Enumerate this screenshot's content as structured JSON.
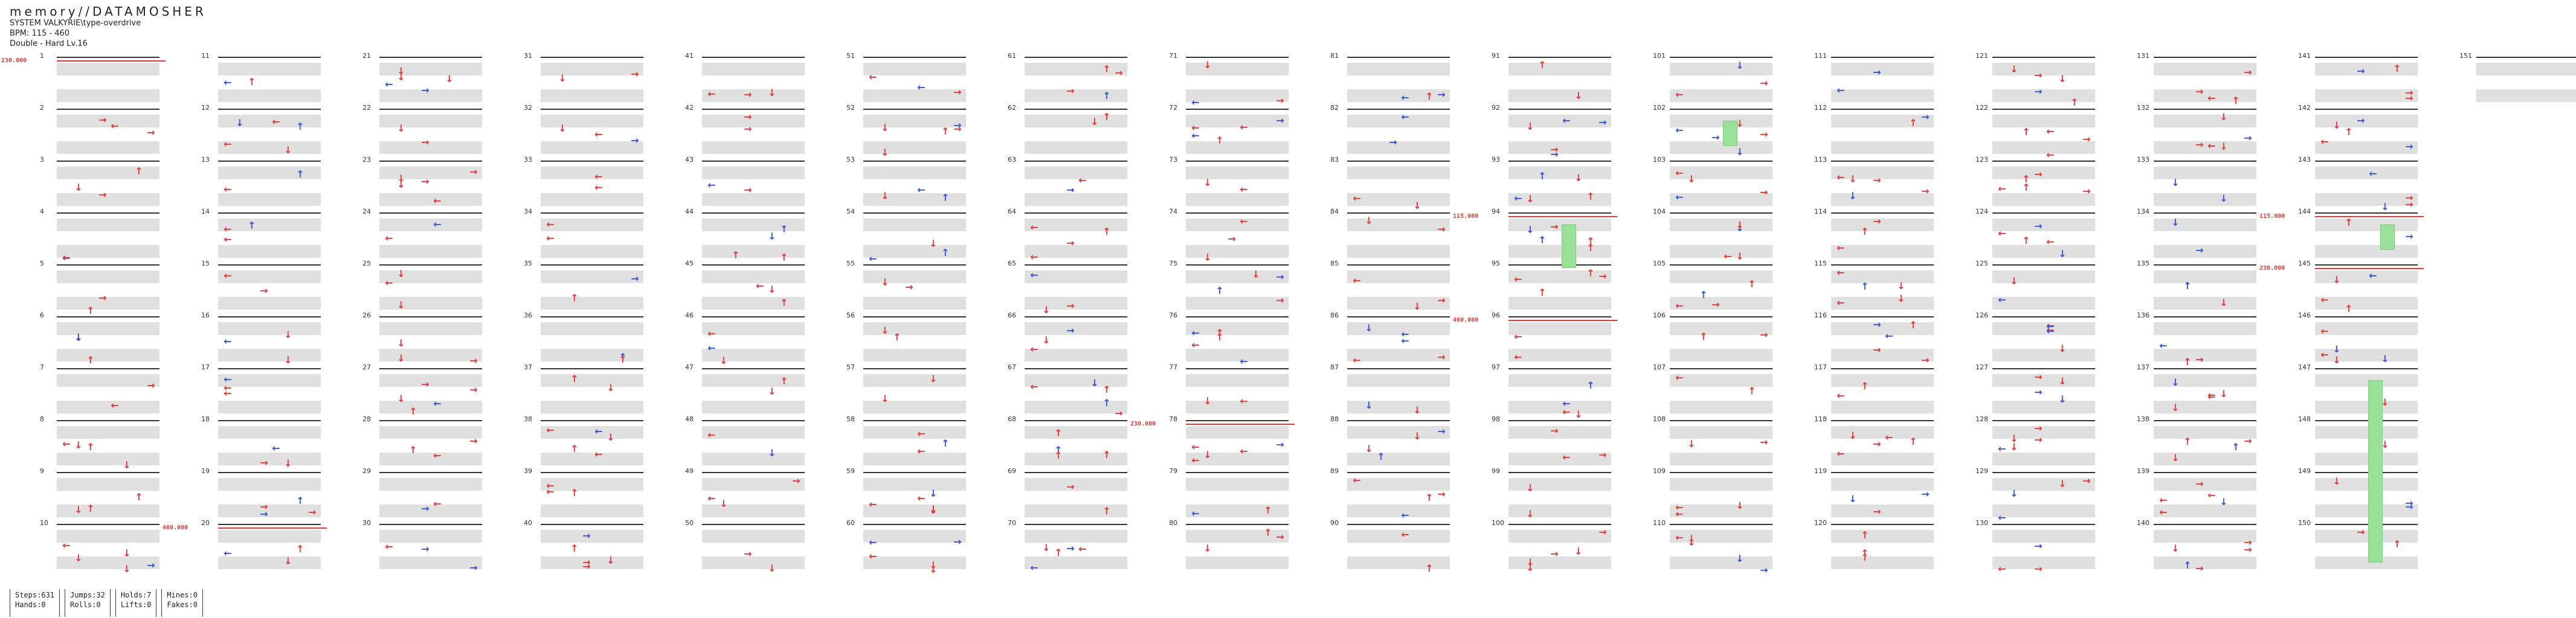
{
  "header": {
    "title": "memory//DATAMOSHER",
    "pack": "SYSTEM VALKYRIE\\type-overdrive",
    "bpm": "BPM: 115 - 460",
    "difficulty": "Double - Hard Lv.16"
  },
  "colors": {
    "quarter_note": "#e53935",
    "eighth_note": "#3355dd",
    "sixteenth_note": "#e8d84a",
    "other_note": "#a03be0",
    "hold": "#99e199",
    "bpm_change": "#e53935",
    "band": "#e0e0e0"
  },
  "columns": [
    {
      "measures": [
        "1",
        "2",
        "3",
        "4",
        "5",
        "6",
        "7",
        "8",
        "9",
        "10"
      ]
    },
    {
      "measures": [
        "11",
        "12",
        "13",
        "14",
        "15",
        "16",
        "17",
        "18",
        "19",
        "20"
      ]
    },
    {
      "measures": [
        "21",
        "22",
        "23",
        "24",
        "25",
        "26",
        "27",
        "28",
        "29",
        "30"
      ]
    },
    {
      "measures": [
        "31",
        "32",
        "33",
        "34",
        "35",
        "36",
        "37",
        "38",
        "39",
        "40"
      ]
    },
    {
      "measures": [
        "41",
        "42",
        "43",
        "44",
        "45",
        "46",
        "47",
        "48",
        "49",
        "50"
      ]
    },
    {
      "measures": [
        "51",
        "52",
        "53",
        "54",
        "55",
        "56",
        "57",
        "58",
        "59",
        "60"
      ]
    },
    {
      "measures": [
        "61",
        "62",
        "63",
        "64",
        "65",
        "66",
        "67",
        "68",
        "69",
        "70"
      ]
    },
    {
      "measures": [
        "71",
        "72",
        "73",
        "74",
        "75",
        "76",
        "77",
        "78",
        "79",
        "80"
      ]
    },
    {
      "measures": [
        "81",
        "82",
        "83",
        "84",
        "85",
        "86",
        "87",
        "88",
        "89",
        "90"
      ]
    },
    {
      "measures": [
        "91",
        "92",
        "93",
        "94",
        "95",
        "96",
        "97",
        "98",
        "99",
        "100"
      ]
    },
    {
      "measures": [
        "101",
        "102",
        "103",
        "104",
        "105",
        "106",
        "107",
        "108",
        "109",
        "110"
      ]
    },
    {
      "measures": [
        "111",
        "112",
        "113",
        "114",
        "115",
        "116",
        "117",
        "118",
        "119",
        "120"
      ]
    },
    {
      "measures": [
        "121",
        "122",
        "123",
        "124",
        "125",
        "126",
        "127",
        "128",
        "129",
        "130"
      ]
    },
    {
      "measures": [
        "131",
        "132",
        "133",
        "134",
        "135",
        "136",
        "137",
        "138",
        "139",
        "140"
      ]
    },
    {
      "measures": [
        "141",
        "142",
        "143",
        "144",
        "145",
        "146",
        "147",
        "148",
        "149",
        "150"
      ]
    },
    {
      "measures": [
        "151"
      ]
    }
  ],
  "bpm_changes": [
    {
      "label": "230.000",
      "measure": "1"
    },
    {
      "label": "460.000",
      "measure": "20"
    },
    {
      "label": "230.000",
      "measure": "78"
    },
    {
      "label": "115.000",
      "measure": "94"
    },
    {
      "label": "460.000",
      "measure": "96"
    },
    {
      "label": "115.000",
      "measure": "144"
    },
    {
      "label": "230.000",
      "measure": "145"
    }
  ],
  "footer": {
    "steps": "Steps:631",
    "hands": "Hands:0",
    "jumps": "Jumps:32",
    "rolls": "Rolls:0",
    "holds": "Holds:7",
    "lifts": "Lifts:0",
    "mines": "Mines:0",
    "fakes": "Fakes:0"
  }
}
